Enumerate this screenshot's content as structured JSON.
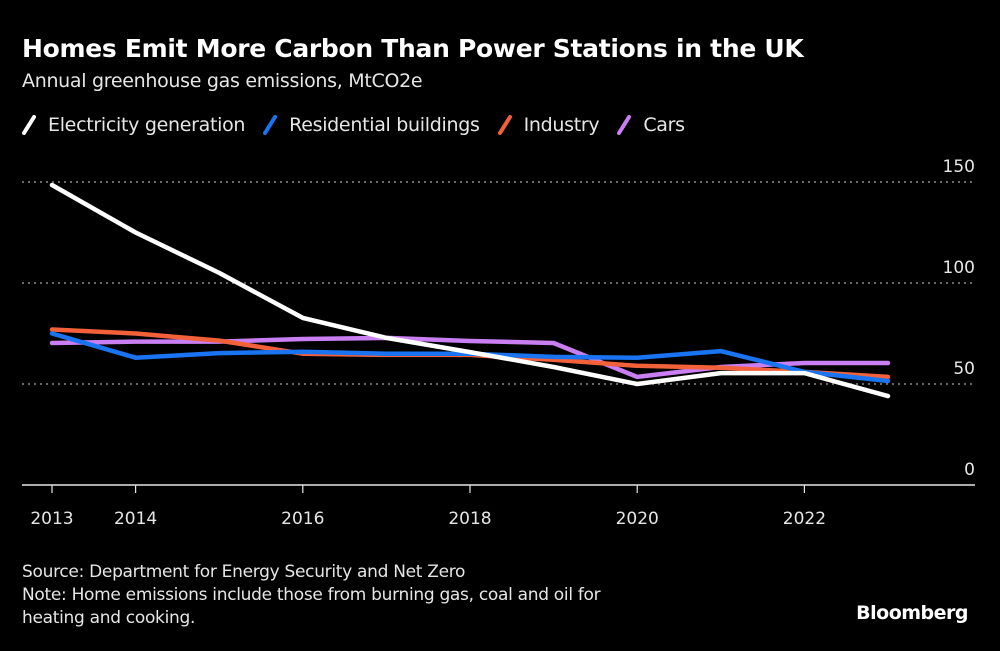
{
  "header": {
    "title": "Homes Emit More Carbon Than Power Stations in the UK",
    "subtitle": "Annual greenhouse gas emissions, MtCO2e"
  },
  "footer": {
    "source": "Source: Department for Energy Security and Net Zero",
    "note_line1": "Note: Home emissions include those from burning gas, coal and oil for",
    "note_line2": "heating and cooking.",
    "brand": "Bloomberg"
  },
  "chart_data": {
    "type": "line",
    "title": "Homes Emit More Carbon Than Power Stations in the UK",
    "subtitle": "Annual greenhouse gas emissions, MtCO2e",
    "xlabel": "",
    "ylabel": "MtCO2e",
    "x": [
      2013,
      2014,
      2015,
      2016,
      2017,
      2018,
      2019,
      2020,
      2021,
      2022,
      2023
    ],
    "x_tick_labels": [
      "2013",
      "2014",
      "2016",
      "2018",
      "2020",
      "2022"
    ],
    "x_ticks": [
      2013,
      2014,
      2016,
      2018,
      2020,
      2022
    ],
    "y_ticks": [
      0,
      50,
      100,
      150
    ],
    "y_tick_labels": [
      "0",
      "50",
      "100",
      "150"
    ],
    "ylim": [
      0,
      150
    ],
    "xlim": [
      2013,
      2024
    ],
    "grid": true,
    "y_axis_position": "right",
    "legend_position": "top-left",
    "series": [
      {
        "name": "Electricity generation",
        "color": "#ffffff",
        "values": [
          148.5,
          125,
          105,
          82.7,
          72.8,
          65.8,
          58.4,
          50,
          55.4,
          55.4,
          44
        ]
      },
      {
        "name": "Residential buildings",
        "color": "#1a73f0",
        "values": [
          75,
          63,
          65.3,
          66,
          65,
          65,
          63.4,
          63,
          66.3,
          56,
          51.5
        ]
      },
      {
        "name": "Industry",
        "color": "#f2613a",
        "values": [
          77,
          75,
          71.5,
          65,
          64.4,
          64.4,
          62,
          59,
          58,
          56,
          53.5
        ]
      },
      {
        "name": "Cars",
        "color": "#c97ef2",
        "values": [
          70.3,
          71,
          71,
          72.3,
          72.8,
          71.3,
          70.3,
          53.5,
          58.4,
          60.4,
          60.4
        ]
      }
    ]
  }
}
